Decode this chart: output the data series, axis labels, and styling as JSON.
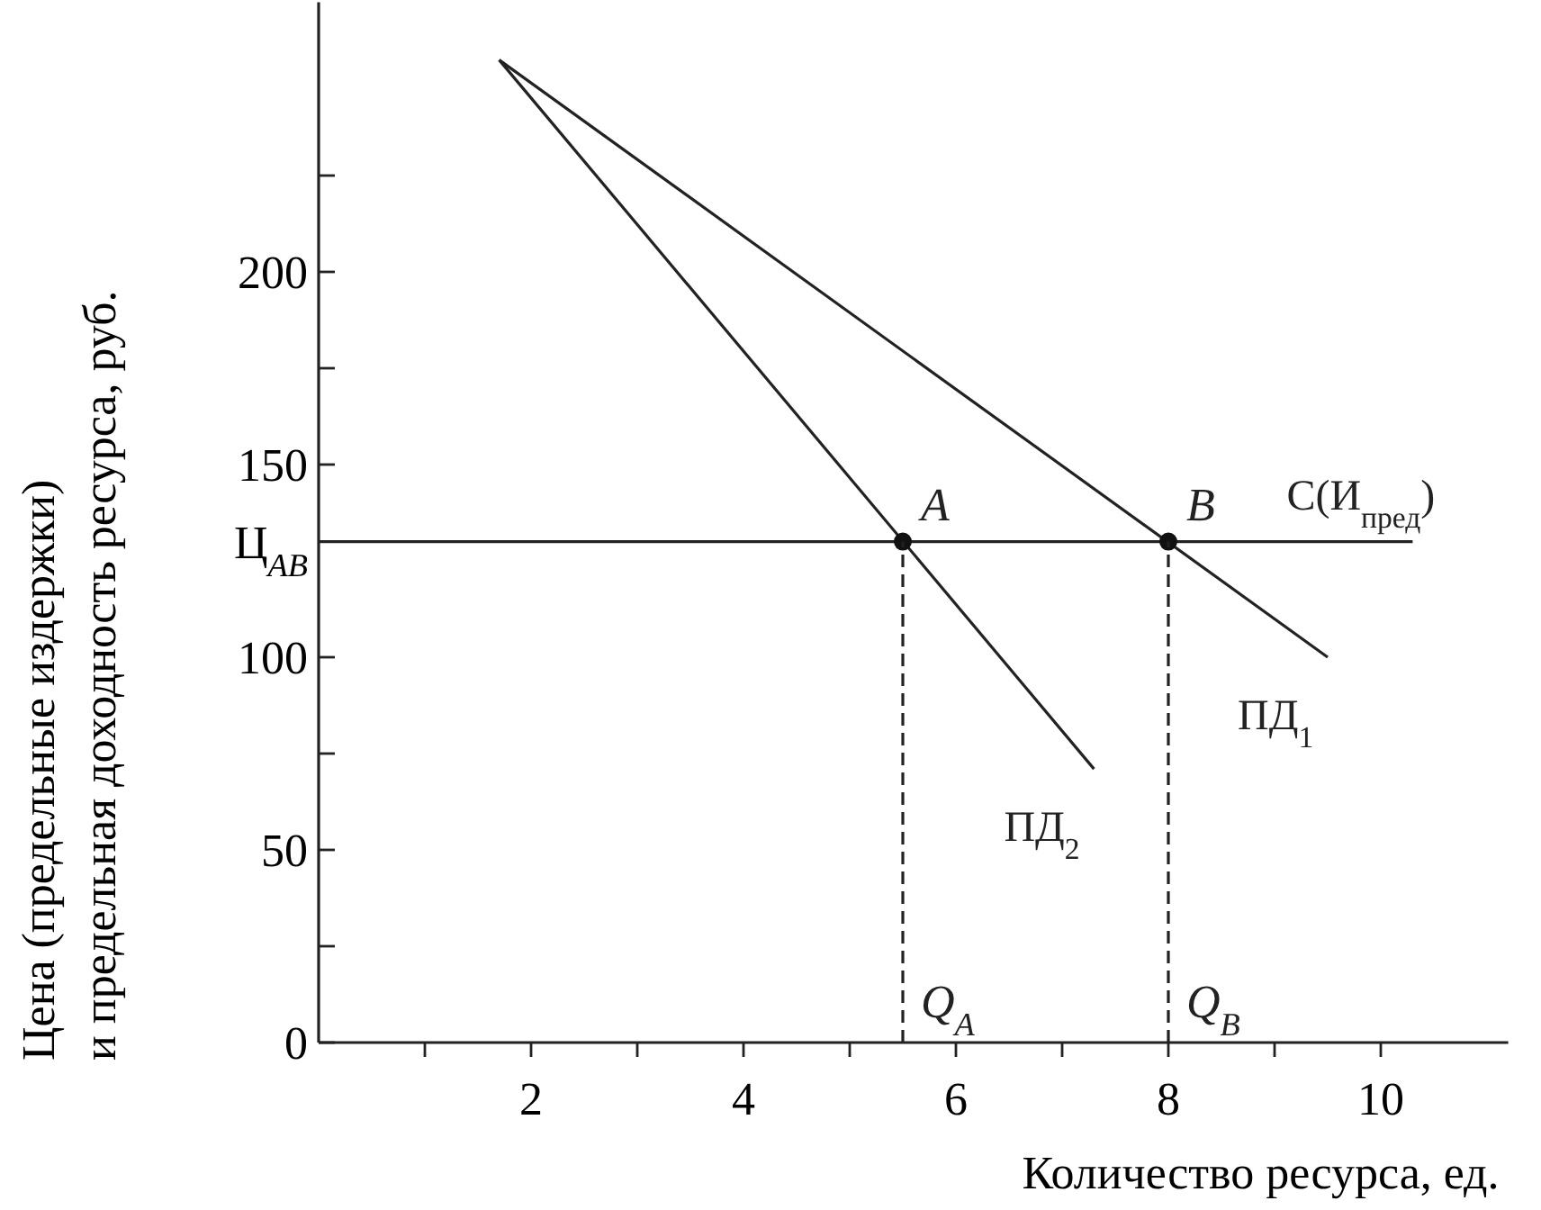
{
  "chart_data": {
    "type": "line",
    "xlabel": "Количество ресурса, ед.",
    "ylabel": "Цена (предельные издержки)\nи предельная доходность ресурса, руб.",
    "xlim": [
      0,
      11.2
    ],
    "ylim": [
      0,
      270
    ],
    "xticks": [
      {
        "value": 1,
        "label": null
      },
      2,
      {
        "value": 3,
        "label": null
      },
      4,
      {
        "value": 5,
        "label": null
      },
      6,
      {
        "value": 7,
        "label": null
      },
      8,
      {
        "value": 9,
        "label": null
      },
      10
    ],
    "yticks": [
      0,
      {
        "value": 25,
        "label": null
      },
      50,
      {
        "value": 75,
        "label": null
      },
      100,
      {
        "value": 130,
        "label": "Ц$_{AB}$"
      },
      150,
      {
        "value": 175,
        "label": null
      },
      200,
      {
        "value": 225,
        "label": null
      }
    ],
    "grid": false,
    "series": [
      {
        "name": "ПД$_{1}$",
        "color": "#222222",
        "x": [
          1.7,
          9.5
        ],
        "values": [
          255,
          100
        ]
      },
      {
        "name": "ПД$_{2}$",
        "color": "#222222",
        "x": [
          1.7,
          7.3
        ],
        "values": [
          255,
          71
        ]
      },
      {
        "name": "С(И$_{пред}$)",
        "color": "#222222",
        "x": [
          0,
          10.3
        ],
        "values": [
          130,
          130
        ]
      },
      {
        "type": "scatter",
        "color": "#111111",
        "x": [
          5.5,
          8
        ],
        "values": [
          130,
          130
        ],
        "marker": "circle",
        "value_labels": [
          "A",
          "B"
        ]
      },
      {
        "color": "#222222",
        "x": [
          5.5,
          5.5
        ],
        "values": [
          0,
          130
        ],
        "line_style": "dashed",
        "value_labels": [
          "Q$_{A}$",
          null
        ]
      },
      {
        "color": "#222222",
        "x": [
          8,
          8
        ],
        "values": [
          0,
          130
        ],
        "line_style": "dashed",
        "value_labels": [
          "Q$_{B}$",
          null
        ]
      }
    ]
  }
}
